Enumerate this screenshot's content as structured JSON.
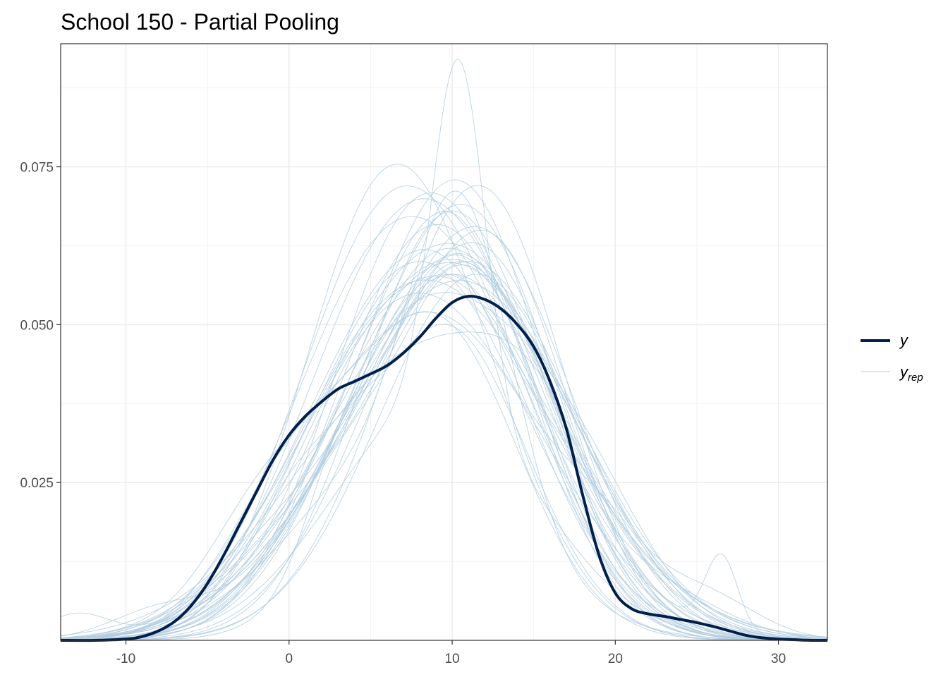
{
  "chart_data": {
    "type": "line",
    "title": "School 150 - Partial Pooling",
    "xlabel": "",
    "ylabel": "",
    "xlim": [
      -14,
      33
    ],
    "ylim": [
      0,
      0.0945
    ],
    "x_ticks": [
      -10,
      0,
      10,
      20,
      30
    ],
    "x_tick_labels": [
      "-10",
      "0",
      "10",
      "20",
      "30"
    ],
    "y_ticks": [
      0.025,
      0.05,
      0.075
    ],
    "y_tick_labels": [
      "0.025",
      "0.050",
      "0.075"
    ],
    "grid": true,
    "legend_position": "right",
    "legend": [
      {
        "label": "y",
        "sub": ""
      },
      {
        "label": "y",
        "sub": "rep"
      }
    ],
    "colors": {
      "y": "#011f4b",
      "yrep": "#b3cde0"
    },
    "series": [
      {
        "x": [
          -14,
          -12,
          -10,
          -9,
          -8,
          -7,
          -6,
          -5,
          -4,
          -3,
          -2,
          -1,
          0,
          1,
          2,
          3,
          4,
          5,
          6,
          7,
          8,
          9,
          10,
          11,
          12,
          13,
          14,
          15,
          16,
          17,
          18,
          19,
          20,
          21,
          22,
          23,
          24,
          25,
          26,
          27,
          28,
          29,
          30,
          31,
          32,
          33
        ],
        "values": [
          0.0,
          0.0,
          0.0002,
          0.0006,
          0.0015,
          0.003,
          0.0055,
          0.009,
          0.0135,
          0.0185,
          0.0235,
          0.0285,
          0.0325,
          0.0355,
          0.0378,
          0.0398,
          0.041,
          0.0422,
          0.0435,
          0.0455,
          0.048,
          0.051,
          0.0535,
          0.0545,
          0.054,
          0.0525,
          0.05,
          0.0465,
          0.041,
          0.0335,
          0.023,
          0.0135,
          0.0075,
          0.005,
          0.0042,
          0.0038,
          0.0033,
          0.0028,
          0.0022,
          0.0015,
          0.0008,
          0.0004,
          0.0002,
          0.0001,
          0.0,
          0.0
        ]
      }
    ],
    "yrep_params": [
      [
        10.4,
        1.6,
        0.055,
        9.0,
        6.2,
        0.038,
        0.0
      ],
      [
        10.6,
        3.0,
        0.045,
        7.0,
        6.5,
        0.03,
        0.0
      ],
      [
        11.5,
        4.6,
        0.052,
        3.0,
        5.5,
        0.022,
        0.0
      ],
      [
        6.2,
        5.2,
        0.072,
        13.0,
        4.5,
        0.01,
        0.0
      ],
      [
        9.5,
        5.6,
        0.055,
        2.0,
        5.0,
        0.018,
        0.0
      ],
      [
        12.0,
        5.5,
        0.062,
        3.0,
        5.0,
        0.016,
        0.0
      ],
      [
        8.0,
        5.4,
        0.06,
        14.0,
        4.0,
        0.015,
        0.0
      ],
      [
        10.0,
        5.0,
        0.064,
        1.0,
        5.5,
        0.014,
        0.0
      ],
      [
        9.0,
        5.8,
        0.058,
        16.0,
        4.5,
        0.012,
        0.0
      ],
      [
        7.5,
        6.2,
        0.055,
        14.0,
        4.0,
        0.02,
        0.0
      ],
      [
        11.0,
        5.4,
        0.066,
        2.5,
        5.0,
        0.012,
        0.0
      ],
      [
        8.5,
        6.0,
        0.05,
        13.5,
        4.2,
        0.018,
        0.0
      ],
      [
        10.5,
        6.0,
        0.06,
        26.5,
        1.0,
        0.012,
        0.0
      ],
      [
        9.0,
        5.0,
        0.05,
        0.0,
        4.0,
        0.022,
        0.0
      ],
      [
        7.0,
        6.5,
        0.052,
        15.0,
        5.0,
        0.015,
        0.0
      ],
      [
        10.0,
        6.8,
        0.058,
        -8.0,
        3.0,
        0.004,
        0.0
      ],
      [
        9.5,
        5.0,
        0.05,
        3.0,
        2.0,
        0.012,
        0.0
      ],
      [
        12.5,
        5.0,
        0.05,
        5.0,
        6.0,
        0.025,
        0.0
      ],
      [
        8.0,
        7.0,
        0.055,
        20.0,
        3.0,
        0.008,
        0.0
      ],
      [
        10.0,
        5.5,
        0.068,
        23.0,
        4.0,
        0.006,
        0.0
      ],
      [
        6.0,
        6.0,
        0.058,
        13.0,
        5.0,
        0.02,
        0.0
      ],
      [
        11.0,
        6.5,
        0.06,
        0.0,
        3.0,
        0.012,
        0.0
      ],
      [
        9.0,
        8.0,
        0.047,
        15.0,
        3.0,
        0.008,
        0.0
      ],
      [
        13.0,
        4.5,
        0.055,
        5.0,
        5.0,
        0.03,
        0.0
      ],
      [
        7.5,
        5.2,
        0.06,
        15.0,
        5.5,
        0.024,
        0.0
      ],
      [
        10.0,
        7.5,
        0.048,
        10.0,
        2.0,
        0.01,
        0.0
      ],
      [
        11.5,
        6.0,
        0.058,
        26.0,
        3.0,
        0.005,
        0.0
      ],
      [
        8.5,
        7.2,
        0.052,
        -2.0,
        3.0,
        0.008,
        0.0
      ],
      [
        12.0,
        6.5,
        0.05,
        5.0,
        5.0,
        0.02,
        0.0
      ],
      [
        7.0,
        6.0,
        0.062,
        14.0,
        5.0,
        0.018,
        0.0
      ],
      [
        9.5,
        6.2,
        0.058,
        20.0,
        3.0,
        0.006,
        0.0
      ],
      [
        10.5,
        5.2,
        0.06,
        0.0,
        4.5,
        0.015,
        0.0
      ],
      [
        8.0,
        6.5,
        0.06,
        -13.0,
        2.0,
        0.004,
        0.0
      ],
      [
        11.0,
        5.0,
        0.062,
        4.0,
        6.0,
        0.02,
        0.0
      ],
      [
        9.0,
        6.8,
        0.054,
        18.0,
        4.0,
        0.012,
        0.0
      ],
      [
        6.5,
        5.8,
        0.068,
        14.0,
        4.5,
        0.014,
        0.0
      ],
      [
        10.0,
        6.0,
        0.055,
        2.0,
        4.0,
        0.016,
        0.0
      ],
      [
        12.5,
        4.8,
        0.06,
        7.0,
        5.0,
        0.02,
        0.0
      ],
      [
        8.8,
        6.4,
        0.05,
        16.0,
        5.0,
        0.016,
        0.0
      ],
      [
        10.2,
        7.0,
        0.06,
        3.0,
        3.0,
        0.006,
        0.0
      ]
    ]
  }
}
